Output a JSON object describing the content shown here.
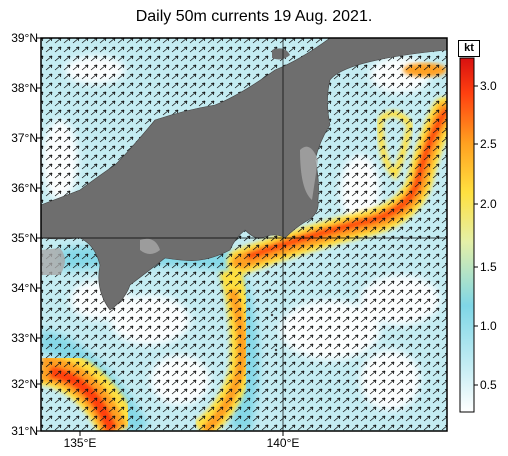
{
  "title": "Daily 50m currents 19 Aug. 2021.",
  "map": {
    "lat_labels": [
      "39°N",
      "38°N",
      "37°N",
      "36°N",
      "35°N",
      "34°N",
      "33°N",
      "32°N",
      "31°N"
    ],
    "lon_labels": [
      "135°E",
      "140°E"
    ]
  },
  "colorbar": {
    "unit": "kt",
    "ticks": [
      "0.5",
      "1.0",
      "1.5",
      "2.0",
      "2.5",
      "3.0"
    ],
    "range": [
      0.3,
      3.2
    ],
    "colors": [
      "#ffffff",
      "#b8e8f0",
      "#7fd6e6",
      "#e8f0a0",
      "#ffe040",
      "#ffa020",
      "#ff5010",
      "#e01010"
    ]
  }
}
